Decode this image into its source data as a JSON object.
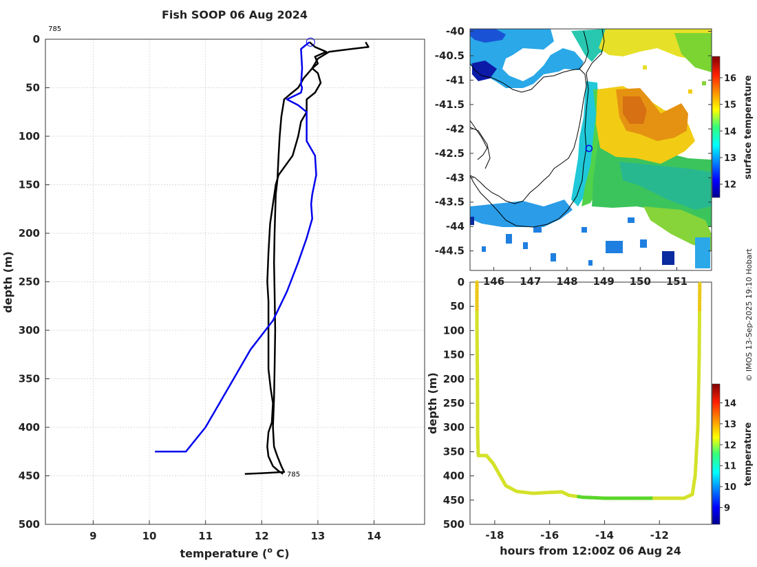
{
  "colors": {
    "obs_line": "#000000",
    "clim_line": "#0000ee",
    "grid": "#d9d9d9",
    "axis": "#333333",
    "coast": "#000000",
    "track_point": "#d4e22a",
    "track_deep": "#5bd62a"
  },
  "credit": "© IMOS 13-Sep-2025 19:10 Hobart",
  "chart_data": [
    {
      "id": "profile",
      "type": "line",
      "title": "Fish SOOP 06 Aug 2024",
      "xlabel": "temperature (° C)",
      "xlabel_main": "temperature (",
      "xlabel_sup": "o",
      "xlabel_end": " C)",
      "ylabel": "depth (m)",
      "xlim": [
        8.15,
        14.9
      ],
      "ylim": [
        0,
        500
      ],
      "y_reversed": true,
      "xticks": [
        9,
        10,
        11,
        12,
        13,
        14
      ],
      "yticks": [
        0,
        50,
        100,
        150,
        200,
        250,
        300,
        350,
        400,
        450,
        500
      ],
      "grid": true,
      "annotations": [
        {
          "text": "785",
          "x": 8.2,
          "y": -10
        },
        {
          "text": "785",
          "x": 12.45,
          "y": 448
        }
      ],
      "marker": {
        "shape": "circle",
        "x": 12.87,
        "y": 3
      },
      "series": [
        {
          "name": "downcast",
          "color": "#000000",
          "points": [
            [
              13.85,
              3
            ],
            [
              13.9,
              8
            ],
            [
              13.6,
              10
            ],
            [
              13.2,
              13
            ],
            [
              13.0,
              20
            ],
            [
              12.9,
              30
            ],
            [
              12.75,
              40
            ],
            [
              12.65,
              50
            ],
            [
              12.5,
              57
            ],
            [
              12.4,
              62
            ],
            [
              12.35,
              80
            ],
            [
              12.32,
              100
            ],
            [
              12.3,
              120
            ],
            [
              12.28,
              145
            ],
            [
              12.25,
              160
            ],
            [
              12.23,
              200
            ],
            [
              12.22,
              230
            ],
            [
              12.23,
              260
            ],
            [
              12.24,
              300
            ],
            [
              12.23,
              340
            ],
            [
              12.22,
              370
            ],
            [
              12.2,
              400
            ],
            [
              12.22,
              420
            ],
            [
              12.28,
              430
            ],
            [
              12.35,
              440
            ],
            [
              12.4,
              446
            ],
            [
              12.1,
              447
            ],
            [
              11.7,
              448
            ]
          ]
        },
        {
          "name": "upcast",
          "color": "#000000",
          "points": [
            [
              12.38,
              448
            ],
            [
              12.3,
              445
            ],
            [
              12.2,
              440
            ],
            [
              12.12,
              430
            ],
            [
              12.1,
              420
            ],
            [
              12.12,
              405
            ],
            [
              12.18,
              395
            ],
            [
              12.2,
              375
            ],
            [
              12.16,
              360
            ],
            [
              12.12,
              340
            ],
            [
              12.12,
              300
            ],
            [
              12.12,
              270
            ],
            [
              12.1,
              250
            ],
            [
              12.12,
              220
            ],
            [
              12.15,
              190
            ],
            [
              12.2,
              170
            ],
            [
              12.25,
              150
            ],
            [
              12.3,
              140
            ],
            [
              12.55,
              120
            ],
            [
              12.65,
              100
            ],
            [
              12.7,
              85
            ],
            [
              12.8,
              75
            ],
            [
              12.8,
              62
            ],
            [
              12.95,
              55
            ],
            [
              13.05,
              45
            ],
            [
              13.0,
              35
            ],
            [
              12.9,
              30
            ],
            [
              13.0,
              25
            ],
            [
              12.95,
              18
            ],
            [
              13.15,
              13
            ],
            [
              12.95,
              8
            ],
            [
              12.85,
              3
            ]
          ]
        },
        {
          "name": "climatology",
          "color": "#0000ee",
          "points": [
            [
              12.85,
              3
            ],
            [
              12.7,
              10
            ],
            [
              12.72,
              30
            ],
            [
              12.7,
              47
            ],
            [
              12.72,
              50
            ],
            [
              12.7,
              55
            ],
            [
              12.45,
              62
            ],
            [
              12.65,
              68
            ],
            [
              12.8,
              75
            ],
            [
              12.8,
              105
            ],
            [
              12.95,
              120
            ],
            [
              12.97,
              140
            ],
            [
              12.9,
              160
            ],
            [
              12.88,
              170
            ],
            [
              12.9,
              185
            ],
            [
              12.8,
              205
            ],
            [
              12.65,
              230
            ],
            [
              12.45,
              260
            ],
            [
              12.2,
              290
            ],
            [
              11.8,
              320
            ],
            [
              11.5,
              350
            ],
            [
              11.0,
              400
            ],
            [
              10.65,
              425
            ],
            [
              10.1,
              425
            ]
          ]
        }
      ]
    },
    {
      "id": "sst_map",
      "type": "heatmap",
      "colorbar_label": "surface temperature",
      "colorbar_ticks": [
        12,
        13,
        14,
        15,
        16
      ],
      "clim": [
        11.5,
        16.8
      ],
      "lat_ticks": [
        -40,
        -40.5,
        -41,
        -41.5,
        -42,
        -42.5,
        -43,
        -43.5,
        -44,
        -44.5
      ],
      "lon_ticks": [
        146,
        147,
        148,
        149,
        150,
        151
      ],
      "lon_tick_labels": [
        "146",
        "147",
        "148",
        "149",
        "150",
        "151"
      ],
      "lon_range": [
        145.35,
        151.95
      ],
      "lat_range": [
        -44.9,
        -39.95
      ],
      "marker": {
        "shape": "circle",
        "lon": 148.6,
        "lat": -42.4
      }
    },
    {
      "id": "track",
      "type": "scatter",
      "xlabel": "hours from 12:00Z 06 Aug 24",
      "ylabel": "depth (m)",
      "colorbar_label": "temperature",
      "colorbar_ticks": [
        9,
        10,
        11,
        12,
        13,
        14
      ],
      "clim": [
        8.2,
        14.9
      ],
      "xlim": [
        -18.9,
        -10.1
      ],
      "ylim": [
        0,
        500
      ],
      "y_reversed": true,
      "xticks": [
        -18,
        -16,
        -14,
        -12
      ],
      "xtick_labels": [
        "-18",
        "-16",
        "-14",
        "-12"
      ],
      "yticks": [
        0,
        50,
        100,
        150,
        200,
        250,
        300,
        350,
        400,
        450,
        500
      ],
      "points": [
        [
          -18.65,
          0
        ],
        [
          -18.65,
          80
        ],
        [
          -18.63,
          200
        ],
        [
          -18.62,
          320
        ],
        [
          -18.6,
          358
        ],
        [
          -18.3,
          358
        ],
        [
          -18.05,
          375
        ],
        [
          -17.85,
          395
        ],
        [
          -17.6,
          420
        ],
        [
          -17.2,
          432
        ],
        [
          -16.6,
          436
        ],
        [
          -16.0,
          434
        ],
        [
          -15.55,
          433
        ],
        [
          -15.3,
          440
        ],
        [
          -14.8,
          444
        ],
        [
          -14.0,
          446
        ],
        [
          -12.8,
          446
        ],
        [
          -11.7,
          446
        ],
        [
          -11.1,
          446
        ],
        [
          -10.8,
          438
        ],
        [
          -10.7,
          400
        ],
        [
          -10.6,
          300
        ],
        [
          -10.55,
          150
        ],
        [
          -10.53,
          0
        ]
      ]
    }
  ]
}
